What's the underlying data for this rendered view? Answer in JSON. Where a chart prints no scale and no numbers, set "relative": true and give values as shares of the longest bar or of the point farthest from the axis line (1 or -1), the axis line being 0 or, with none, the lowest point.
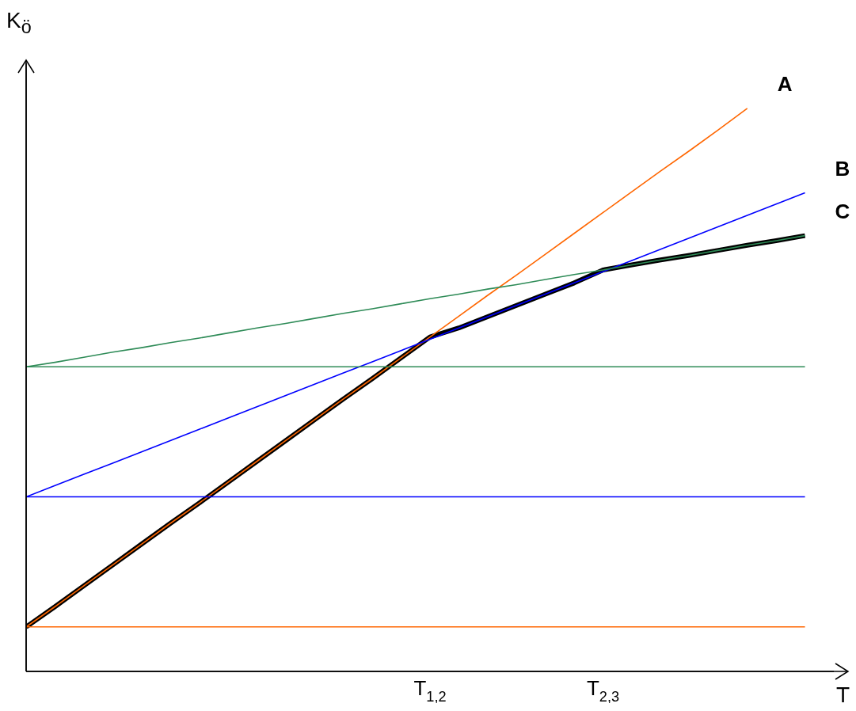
{
  "chart_data": {
    "type": "line",
    "relative": true,
    "ylabel": "K$_{ö}$",
    "xlabel": "T",
    "grid": false,
    "legend": false,
    "marker": "none",
    "line_style": "solid",
    "categories": [
      null,
      null,
      null,
      null,
      null,
      null,
      null,
      null,
      null,
      null,
      null,
      null,
      null,
      null,
      "T$_{1,2}$",
      null,
      null,
      null,
      null,
      null,
      "T$_{2,3}$",
      null,
      null,
      null,
      null,
      null,
      null,
      null
    ],
    "series": [
      {
        "color": "#000000",
        "values": [
          0.079,
          0.115,
          0.152,
          0.189,
          0.226,
          0.263,
          0.299,
          0.336,
          0.373,
          0.41,
          0.447,
          0.484,
          0.52,
          0.557,
          0.594,
          0.61,
          0.63,
          0.65,
          0.67,
          0.69,
          0.713,
          0.722,
          0.731,
          0.739,
          0.748,
          0.757,
          0.765,
          0.774
        ]
      },
      {
        "name": "A",
        "color": "#ff6600",
        "values": [
          0.079,
          0.115,
          0.152,
          0.189,
          0.226,
          0.263,
          0.299,
          0.336,
          0.373,
          0.41,
          0.447,
          0.484,
          0.52,
          0.557,
          0.594,
          0.631,
          0.668,
          0.704,
          0.741,
          0.778,
          0.815,
          0.852,
          0.889,
          0.925,
          0.962,
          1.0,
          null,
          null
        ]
      },
      {
        "name": "B",
        "color": "#0000ff",
        "values": [
          0.31,
          0.33,
          0.35,
          0.37,
          0.39,
          0.41,
          0.43,
          0.45,
          0.47,
          0.49,
          0.51,
          0.53,
          0.55,
          0.57,
          0.59,
          0.61,
          0.63,
          0.65,
          0.67,
          0.69,
          0.71,
          0.73,
          0.75,
          0.77,
          0.79,
          0.81,
          0.83,
          0.85
        ]
      },
      {
        "name": "C",
        "color": "#2e8b57",
        "values": [
          0.541,
          0.549,
          0.558,
          0.567,
          0.575,
          0.584,
          0.592,
          0.601,
          0.61,
          0.618,
          0.627,
          0.636,
          0.644,
          0.653,
          0.662,
          0.67,
          0.679,
          0.687,
          0.696,
          0.705,
          0.713,
          0.722,
          0.731,
          0.739,
          0.748,
          0.757,
          0.765,
          0.774
        ]
      },
      {
        "color": "#ff6600",
        "values": [
          0.079,
          0.079,
          0.079,
          0.079,
          0.079,
          0.079,
          0.079,
          0.079,
          0.079,
          0.079,
          0.079,
          0.079,
          0.079,
          0.079,
          0.079,
          0.079,
          0.079,
          0.079,
          0.079,
          0.079,
          0.079,
          0.079,
          0.079,
          0.079,
          0.079,
          0.079,
          0.079,
          0.079
        ]
      },
      {
        "color": "#0000ff",
        "values": [
          0.31,
          0.31,
          0.31,
          0.31,
          0.31,
          0.31,
          0.31,
          0.31,
          0.31,
          0.31,
          0.31,
          0.31,
          0.31,
          0.31,
          0.31,
          0.31,
          0.31,
          0.31,
          0.31,
          0.31,
          0.31,
          0.31,
          0.31,
          0.31,
          0.31,
          0.31,
          0.31,
          0.31
        ]
      },
      {
        "color": "#2e8b57",
        "values": [
          0.541,
          0.541,
          0.541,
          0.541,
          0.541,
          0.541,
          0.541,
          0.541,
          0.541,
          0.541,
          0.541,
          0.541,
          0.541,
          0.541,
          0.541,
          0.541,
          0.541,
          0.541,
          0.541,
          0.541,
          0.541,
          0.541,
          0.541,
          0.541,
          0.541,
          0.541,
          0.541,
          0.541
        ]
      }
    ]
  }
}
